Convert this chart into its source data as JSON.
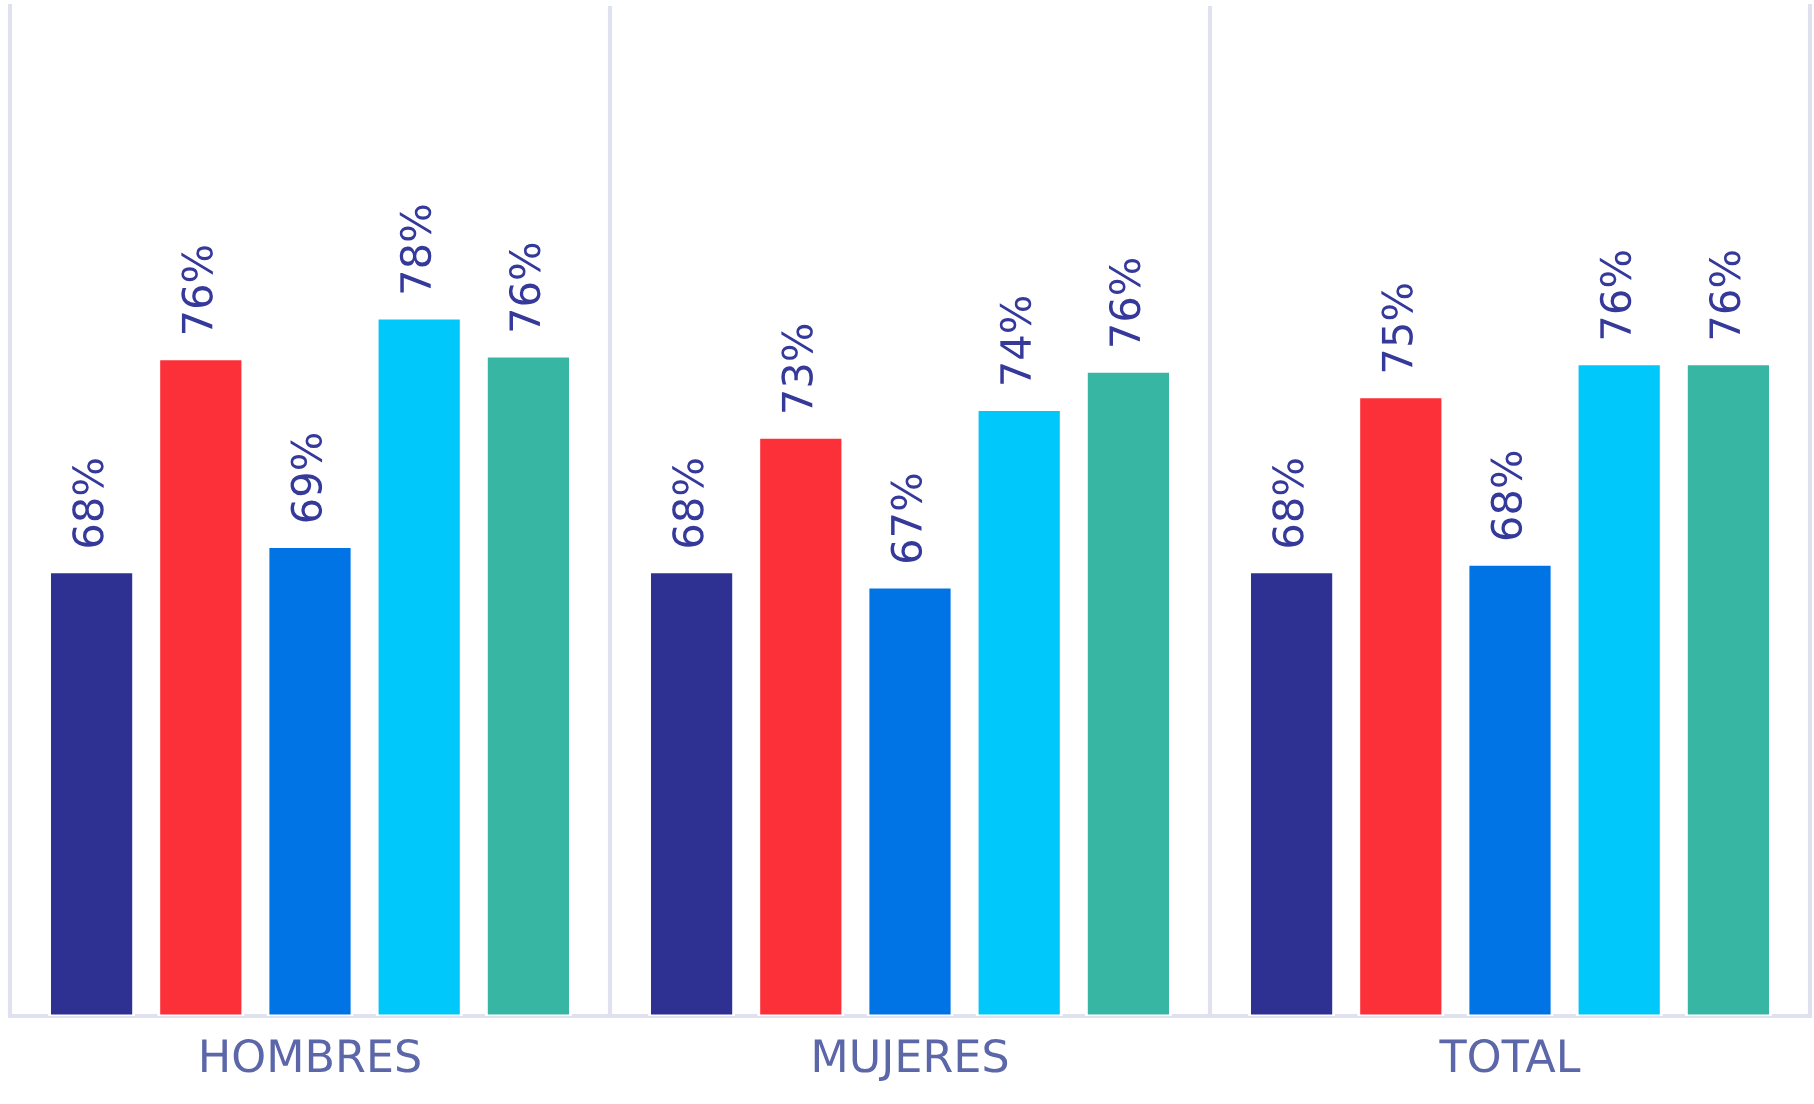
{
  "chart_data": {
    "type": "bar",
    "categories": [
      "HOMBRES",
      "MUJERES",
      "TOTAL"
    ],
    "series": [
      {
        "color": "#2e3192",
        "values": [
          68.0,
          68.0,
          68.0
        ],
        "value_labels": [
          "68%",
          "68%",
          "68%"
        ]
      },
      {
        "color": "#fc3039",
        "values": [
          76.4,
          73.3,
          74.9
        ],
        "value_labels": [
          "76%",
          "73%",
          "75%"
        ]
      },
      {
        "color": "#0074e4",
        "values": [
          69.0,
          67.4,
          68.3
        ],
        "value_labels": [
          "69%",
          "67%",
          "68%"
        ]
      },
      {
        "color": "#00c8fa",
        "values": [
          78.0,
          74.4,
          76.2
        ],
        "value_labels": [
          "78%",
          "74%",
          "76%"
        ]
      },
      {
        "color": "#36b6a3",
        "values": [
          76.5,
          75.9,
          76.2
        ],
        "value_labels": [
          "76%",
          "76%",
          "76%"
        ]
      }
    ],
    "ylim": [
      50.5,
      90.3
    ],
    "tick_labels": "x",
    "grid": "x",
    "legend": false
  }
}
